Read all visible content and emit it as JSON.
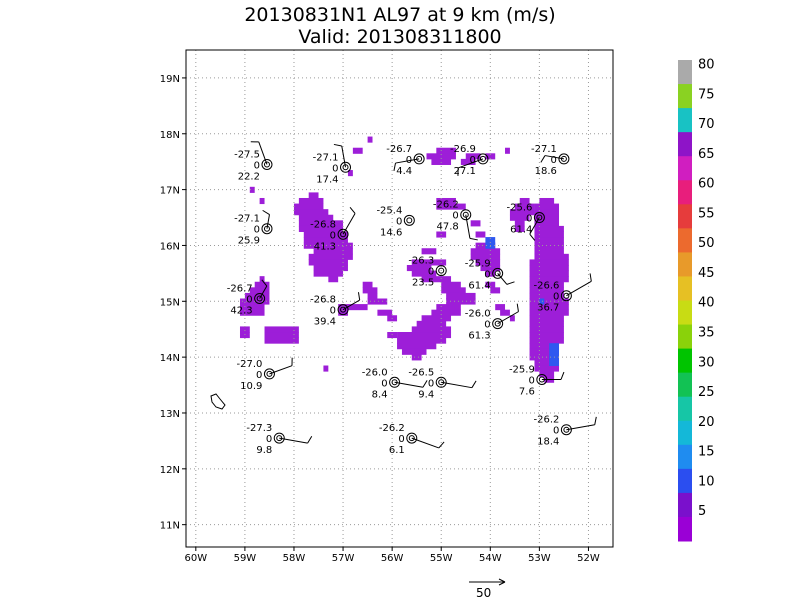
{
  "title": "20130831N1 AL97 at 9 km (m/s)",
  "subtitle": "Valid: 201308311800",
  "chart_data": {
    "type": "heatmap",
    "xlim": [
      -60.2,
      -51.5
    ],
    "ylim": [
      10.6,
      19.5
    ],
    "x_ticks": [
      {
        "v": -60,
        "label": "60W"
      },
      {
        "v": -59,
        "label": "59W"
      },
      {
        "v": -58,
        "label": "58W"
      },
      {
        "v": -57,
        "label": "57W"
      },
      {
        "v": -56,
        "label": "56W"
      },
      {
        "v": -55,
        "label": "55W"
      },
      {
        "v": -54,
        "label": "54W"
      },
      {
        "v": -53,
        "label": "53W"
      },
      {
        "v": -52,
        "label": "52W"
      }
    ],
    "y_ticks": [
      {
        "v": 11,
        "label": "11N"
      },
      {
        "v": 12,
        "label": "12N"
      },
      {
        "v": 13,
        "label": "13N"
      },
      {
        "v": 14,
        "label": "14N"
      },
      {
        "v": 15,
        "label": "15N"
      },
      {
        "v": 16,
        "label": "16N"
      },
      {
        "v": 17,
        "label": "17N"
      },
      {
        "v": 18,
        "label": "18N"
      },
      {
        "v": 19,
        "label": "19N"
      }
    ],
    "grid": true,
    "colorbar": {
      "labels": [
        "5",
        "10",
        "15",
        "20",
        "25",
        "30",
        "35",
        "40",
        "45",
        "50",
        "55",
        "60",
        "65",
        "70",
        "75",
        "80"
      ],
      "colors": [
        "#9a00d6",
        "#7a10cc",
        "#2b4ef0",
        "#1f8cf0",
        "#14b8d8",
        "#16c6a6",
        "#12c254",
        "#00c400",
        "#8ad20a",
        "#c8dc14",
        "#e6c024",
        "#e89a2a",
        "#ec6a2e",
        "#e63c3c",
        "#e81e7c",
        "#d01ec0",
        "#8e14c8",
        "#18c2c4",
        "#8ad222",
        "#aaaaaa"
      ]
    },
    "vector_scale": {
      "label": "50"
    },
    "regions": [
      {
        "lat": 17.3,
        "lon_from": -56.9,
        "lon_to": -56.8
      },
      {
        "lat": 17.7,
        "lon_from": -56.8,
        "lon_to": -56.6
      },
      {
        "lat": 16.9,
        "lon_from": -57.7,
        "lon_to": -57.5
      },
      {
        "lat": 16.8,
        "lon_from": -57.9,
        "lon_to": -57.4
      },
      {
        "lat": 16.7,
        "lon_from": -58.0,
        "lon_to": -57.4
      },
      {
        "lat": 16.6,
        "lon_from": -58.0,
        "lon_to": -57.3
      },
      {
        "lat": 16.5,
        "lon_from": -57.9,
        "lon_to": -57.2
      },
      {
        "lat": 16.4,
        "lon_from": -57.9,
        "lon_to": -57.0
      },
      {
        "lat": 16.3,
        "lon_from": -57.9,
        "lon_to": -57.0
      },
      {
        "lat": 16.2,
        "lon_from": -57.8,
        "lon_to": -56.9
      },
      {
        "lat": 16.1,
        "lon_from": -57.8,
        "lon_to": -56.9
      },
      {
        "lat": 16.0,
        "lon_from": -57.8,
        "lon_to": -56.8
      },
      {
        "lat": 15.9,
        "lon_from": -57.6,
        "lon_to": -56.8
      },
      {
        "lat": 15.8,
        "lon_from": -57.7,
        "lon_to": -56.8
      },
      {
        "lat": 15.7,
        "lon_from": -57.7,
        "lon_to": -56.9
      },
      {
        "lat": 15.6,
        "lon_from": -57.6,
        "lon_to": -56.9
      },
      {
        "lat": 15.5,
        "lon_from": -57.6,
        "lon_to": -57.0
      },
      {
        "lat": 15.4,
        "lon_from": -57.3,
        "lon_to": -57.1
      },
      {
        "lat": 15.3,
        "lon_from": -56.6,
        "lon_to": -56.4
      },
      {
        "lat": 15.2,
        "lon_from": -56.6,
        "lon_to": -56.3
      },
      {
        "lat": 15.1,
        "lon_from": -56.5,
        "lon_to": -56.3
      },
      {
        "lat": 15.0,
        "lon_from": -56.5,
        "lon_to": -56.1
      },
      {
        "lat": 14.9,
        "lon_from": -57.1,
        "lon_to": -56.5
      },
      {
        "lat": 14.8,
        "lon_from": -57.1,
        "lon_to": -56.9
      },
      {
        "lat": 14.8,
        "lon_from": -56.3,
        "lon_to": -56.0
      },
      {
        "lat": 14.7,
        "lon_from": -56.1,
        "lon_to": -55.9
      },
      {
        "lat": 15.4,
        "lon_from": -58.7,
        "lon_to": -58.6
      },
      {
        "lat": 15.3,
        "lon_from": -58.8,
        "lon_to": -58.5
      },
      {
        "lat": 15.2,
        "lon_from": -58.9,
        "lon_to": -58.5
      },
      {
        "lat": 15.1,
        "lon_from": -59.0,
        "lon_to": -58.5
      },
      {
        "lat": 15.0,
        "lon_from": -59.1,
        "lon_to": -58.5
      },
      {
        "lat": 14.9,
        "lon_from": -59.1,
        "lon_to": -58.6
      },
      {
        "lat": 14.8,
        "lon_from": -59.1,
        "lon_to": -58.6
      },
      {
        "lat": 14.5,
        "lon_from": -59.1,
        "lon_to": -58.9
      },
      {
        "lat": 14.5,
        "lon_from": -58.6,
        "lon_to": -57.9
      },
      {
        "lat": 14.4,
        "lon_from": -58.6,
        "lon_to": -57.9
      },
      {
        "lat": 14.3,
        "lon_from": -58.6,
        "lon_to": -57.9
      },
      {
        "lat": 14.4,
        "lon_from": -59.1,
        "lon_to": -58.9
      },
      {
        "lat": 13.8,
        "lon_from": -57.4,
        "lon_to": -57.3
      },
      {
        "lat": 16.8,
        "lon_from": -58.7,
        "lon_to": -58.6
      },
      {
        "lat": 17.0,
        "lon_from": -58.9,
        "lon_to": -58.8
      },
      {
        "lat": 16.2,
        "lon_from": -55.1,
        "lon_to": -54.9
      },
      {
        "lat": 15.9,
        "lon_from": -55.4,
        "lon_to": -55.1
      },
      {
        "lat": 15.7,
        "lon_from": -55.6,
        "lon_to": -54.9
      },
      {
        "lat": 15.6,
        "lon_from": -55.7,
        "lon_to": -55.2
      },
      {
        "lat": 15.5,
        "lon_from": -55.6,
        "lon_to": -55.1
      },
      {
        "lat": 15.4,
        "lon_from": -55.4,
        "lon_to": -54.8
      },
      {
        "lat": 15.3,
        "lon_from": -55.0,
        "lon_to": -54.6
      },
      {
        "lat": 15.2,
        "lon_from": -55.0,
        "lon_to": -54.5
      },
      {
        "lat": 15.1,
        "lon_from": -54.9,
        "lon_to": -54.3
      },
      {
        "lat": 15.0,
        "lon_from": -54.9,
        "lon_to": -54.3
      },
      {
        "lat": 14.9,
        "lon_from": -55.1,
        "lon_to": -54.6
      },
      {
        "lat": 14.8,
        "lon_from": -55.2,
        "lon_to": -54.6
      },
      {
        "lat": 14.7,
        "lon_from": -55.4,
        "lon_to": -54.8
      },
      {
        "lat": 14.6,
        "lon_from": -55.5,
        "lon_to": -54.9
      },
      {
        "lat": 14.5,
        "lon_from": -55.6,
        "lon_to": -54.8
      },
      {
        "lat": 14.4,
        "lon_from": -55.9,
        "lon_to": -54.8
      },
      {
        "lat": 14.3,
        "lon_from": -55.9,
        "lon_to": -54.9
      },
      {
        "lat": 14.2,
        "lon_from": -55.9,
        "lon_to": -55.1
      },
      {
        "lat": 14.1,
        "lon_from": -55.8,
        "lon_to": -55.3
      },
      {
        "lat": 14.0,
        "lon_from": -55.6,
        "lon_to": -55.4
      },
      {
        "lat": 14.4,
        "lon_from": -56.1,
        "lon_to": -55.9
      },
      {
        "lat": 16.8,
        "lon_from": -55.1,
        "lon_to": -54.7
      },
      {
        "lat": 16.7,
        "lon_from": -55.1,
        "lon_to": -54.5
      },
      {
        "lat": 16.4,
        "lon_from": -54.4,
        "lon_to": -54.2
      },
      {
        "lat": 16.2,
        "lon_from": -54.3,
        "lon_to": -54.1
      },
      {
        "lat": 16.0,
        "lon_from": -54.3,
        "lon_to": -53.9
      },
      {
        "lat": 15.9,
        "lon_from": -54.4,
        "lon_to": -53.8
      },
      {
        "lat": 15.8,
        "lon_from": -54.4,
        "lon_to": -53.8
      },
      {
        "lat": 15.7,
        "lon_from": -54.3,
        "lon_to": -53.8
      },
      {
        "lat": 15.6,
        "lon_from": -54.2,
        "lon_to": -53.8
      },
      {
        "lat": 15.5,
        "lon_from": -54.1,
        "lon_to": -53.9
      },
      {
        "lat": 15.3,
        "lon_from": -54.1,
        "lon_to": -53.9
      },
      {
        "lat": 15.2,
        "lon_from": -54.0,
        "lon_to": -53.8
      },
      {
        "lat": 14.9,
        "lon_from": -53.9,
        "lon_to": -53.7
      },
      {
        "lat": 14.8,
        "lon_from": -53.8,
        "lon_to": -53.6
      },
      {
        "lat": 14.7,
        "lon_from": -53.6,
        "lon_to": -53.5
      },
      {
        "lat": 17.7,
        "lon_from": -55.1,
        "lon_to": -54.7
      },
      {
        "lat": 17.6,
        "lon_from": -55.3,
        "lon_to": -54.7
      },
      {
        "lat": 17.5,
        "lon_from": -55.2,
        "lon_to": -54.8
      },
      {
        "lat": 17.6,
        "lon_from": -54.5,
        "lon_to": -54.2
      },
      {
        "lat": 17.5,
        "lon_from": -54.6,
        "lon_to": -54.3
      },
      {
        "lat": 17.6,
        "lon_from": -54.1,
        "lon_to": -53.9
      },
      {
        "lat": 17.7,
        "lon_from": -53.7,
        "lon_to": -53.6
      },
      {
        "lat": 17.9,
        "lon_from": -56.5,
        "lon_to": -56.4
      },
      {
        "lat": 16.8,
        "lon_from": -53.4,
        "lon_to": -53.2
      },
      {
        "lat": 16.7,
        "lon_from": -53.5,
        "lon_to": -53.1
      },
      {
        "lat": 16.6,
        "lon_from": -53.6,
        "lon_to": -53.1
      },
      {
        "lat": 16.5,
        "lon_from": -53.6,
        "lon_to": -53.2
      },
      {
        "lat": 16.4,
        "lon_from": -53.5,
        "lon_to": -53.3
      },
      {
        "lat": 16.3,
        "lon_from": -53.5,
        "lon_to": -53.3
      },
      {
        "lat": 16.8,
        "lon_from": -53.0,
        "lon_to": -52.7
      },
      {
        "lat": 16.7,
        "lon_from": -53.1,
        "lon_to": -52.6
      },
      {
        "lat": 16.6,
        "lon_from": -53.1,
        "lon_to": -52.6
      },
      {
        "lat": 16.5,
        "lon_from": -53.1,
        "lon_to": -52.6
      },
      {
        "lat": 16.4,
        "lon_from": -53.1,
        "lon_to": -52.6
      },
      {
        "lat": 16.3,
        "lon_from": -53.1,
        "lon_to": -52.5
      },
      {
        "lat": 16.2,
        "lon_from": -53.1,
        "lon_to": -52.5
      },
      {
        "lat": 16.1,
        "lon_from": -53.1,
        "lon_to": -52.5
      },
      {
        "lat": 16.0,
        "lon_from": -53.1,
        "lon_to": -52.5
      },
      {
        "lat": 15.9,
        "lon_from": -53.1,
        "lon_to": -52.5
      },
      {
        "lat": 15.8,
        "lon_from": -53.1,
        "lon_to": -52.4
      },
      {
        "lat": 15.7,
        "lon_from": -53.2,
        "lon_to": -52.4
      },
      {
        "lat": 15.6,
        "lon_from": -53.2,
        "lon_to": -52.4
      },
      {
        "lat": 15.5,
        "lon_from": -53.2,
        "lon_to": -52.4
      },
      {
        "lat": 15.4,
        "lon_from": -53.2,
        "lon_to": -52.4
      },
      {
        "lat": 15.3,
        "lon_from": -53.2,
        "lon_to": -52.5
      },
      {
        "lat": 15.2,
        "lon_from": -53.2,
        "lon_to": -52.5
      },
      {
        "lat": 15.1,
        "lon_from": -53.2,
        "lon_to": -52.5
      },
      {
        "lat": 15.0,
        "lon_from": -53.2,
        "lon_to": -52.4
      },
      {
        "lat": 14.9,
        "lon_from": -53.2,
        "lon_to": -52.4
      },
      {
        "lat": 14.8,
        "lon_from": -53.2,
        "lon_to": -52.4
      },
      {
        "lat": 14.7,
        "lon_from": -53.2,
        "lon_to": -52.5
      },
      {
        "lat": 14.6,
        "lon_from": -53.2,
        "lon_to": -52.5
      },
      {
        "lat": 14.5,
        "lon_from": -53.2,
        "lon_to": -52.5
      },
      {
        "lat": 14.4,
        "lon_from": -53.2,
        "lon_to": -52.5
      },
      {
        "lat": 14.3,
        "lon_from": -53.2,
        "lon_to": -52.5
      },
      {
        "lat": 14.2,
        "lon_from": -53.2,
        "lon_to": -52.6
      },
      {
        "lat": 14.1,
        "lon_from": -53.2,
        "lon_to": -52.6
      },
      {
        "lat": 14.0,
        "lon_from": -53.2,
        "lon_to": -52.6
      },
      {
        "lat": 13.9,
        "lon_from": -53.1,
        "lon_to": -52.6
      },
      {
        "lat": 13.8,
        "lon_from": -53.1,
        "lon_to": -52.6
      },
      {
        "lat": 13.7,
        "lon_from": -53.0,
        "lon_to": -52.7
      },
      {
        "lat": 13.6,
        "lon_from": -52.9,
        "lon_to": -52.7
      }
    ],
    "blue_regions": [
      {
        "lat": 16.1,
        "lon_from": -54.1,
        "lon_to": -53.9
      },
      {
        "lat": 16.0,
        "lon_from": -54.1,
        "lon_to": -53.9
      },
      {
        "lat": 14.2,
        "lon_from": -52.8,
        "lon_to": -52.6
      },
      {
        "lat": 14.1,
        "lon_from": -52.8,
        "lon_to": -52.6
      },
      {
        "lat": 14.0,
        "lon_from": -52.8,
        "lon_to": -52.6
      },
      {
        "lat": 13.9,
        "lon_from": -52.8,
        "lon_to": -52.6
      },
      {
        "lat": 15.0,
        "lon_from": -53.0,
        "lon_to": -52.9
      }
    ],
    "sondes": [
      {
        "lon": -58.55,
        "lat": 17.45,
        "labels": [
          "-27.5",
          "0",
          "22.2"
        ],
        "barb_dir": 200,
        "barb_len": 0.5
      },
      {
        "lon": -56.95,
        "lat": 17.4,
        "labels": [
          "-27.1",
          "0",
          "17.4"
        ],
        "barb_dir": 190,
        "barb_len": 0.45
      },
      {
        "lon": -55.45,
        "lat": 17.55,
        "labels": [
          "-26.7",
          "0",
          "4.4"
        ],
        "barb_dir": 280,
        "barb_len": 0.5
      },
      {
        "lon": -54.15,
        "lat": 17.55,
        "labels": [
          "-26.9",
          "0",
          "27.1"
        ],
        "barb_dir": 290,
        "barb_len": 0.55
      },
      {
        "lon": -52.5,
        "lat": 17.55,
        "labels": [
          "-27.1",
          "0",
          "18.6"
        ],
        "barb_dir": 260,
        "barb_len": 0.4
      },
      {
        "lon": -58.55,
        "lat": 16.3,
        "labels": [
          "-27.1",
          "0",
          "25.9"
        ],
        "barb_dir": 170,
        "barb_len": 0.3
      },
      {
        "lon": -55.65,
        "lat": 16.45,
        "labels": [
          "-25.4",
          "0",
          "14.6"
        ],
        "barb_dir": 0,
        "barb_len": 0
      },
      {
        "lon": -57.0,
        "lat": 16.2,
        "labels": [
          "-26.8",
          "0",
          "41.3"
        ],
        "barb_dir": 150,
        "barb_len": 0.5
      },
      {
        "lon": -54.5,
        "lat": 16.55,
        "labels": [
          "-26.2",
          "0",
          "47.8"
        ],
        "barb_dir": 10,
        "barb_len": 0.5
      },
      {
        "lon": -53.0,
        "lat": 16.5,
        "labels": [
          "-25.6",
          "0",
          "61.4"
        ],
        "barb_dir": 330,
        "barb_len": 0.4
      },
      {
        "lon": -55.0,
        "lat": 15.55,
        "labels": [
          "-26.3",
          "0",
          "23.5"
        ],
        "barb_dir": 0,
        "barb_len": 0
      },
      {
        "lon": -53.85,
        "lat": 15.5,
        "labels": [
          "-25.9",
          "0",
          "61.4"
        ],
        "barb_dir": 40,
        "barb_len": 0.3
      },
      {
        "lon": -58.7,
        "lat": 15.05,
        "labels": [
          "-26.7",
          "0",
          "42.3"
        ],
        "barb_dir": 150,
        "barb_len": 0.3
      },
      {
        "lon": -57.0,
        "lat": 14.85,
        "labels": [
          "-26.8",
          "0",
          "39.4"
        ],
        "barb_dir": 120,
        "barb_len": 0.4
      },
      {
        "lon": -52.45,
        "lat": 15.1,
        "labels": [
          "-26.6",
          "0",
          "36.7"
        ],
        "barb_dir": 120,
        "barb_len": 0.6
      },
      {
        "lon": -53.85,
        "lat": 14.6,
        "labels": [
          "-26.0",
          "0",
          "61.3"
        ],
        "barb_dir": 120,
        "barb_len": 0.5
      },
      {
        "lon": -58.5,
        "lat": 13.7,
        "labels": [
          "-27.0",
          "0",
          "10.9"
        ],
        "barb_dir": 110,
        "barb_len": 0.5
      },
      {
        "lon": -55.95,
        "lat": 13.55,
        "labels": [
          "-26.0",
          "0",
          "8.4"
        ],
        "barb_dir": 80,
        "barb_len": 0.6
      },
      {
        "lon": -55.0,
        "lat": 13.55,
        "labels": [
          "-26.5",
          "0",
          "9.4"
        ],
        "barb_dir": 80,
        "barb_len": 0.65
      },
      {
        "lon": -52.95,
        "lat": 13.6,
        "labels": [
          "-25.9",
          "0",
          "7.6"
        ],
        "barb_dir": 90,
        "barb_len": 0.4
      },
      {
        "lon": -58.3,
        "lat": 12.55,
        "labels": [
          "-27.3",
          "0",
          "9.8"
        ],
        "barb_dir": 80,
        "barb_len": 0.6
      },
      {
        "lon": -55.6,
        "lat": 12.55,
        "labels": [
          "-26.2",
          "0",
          "6.1"
        ],
        "barb_dir": 70,
        "barb_len": 0.6
      },
      {
        "lon": -52.45,
        "lat": 12.7,
        "labels": [
          "-26.2",
          "0",
          "18.4"
        ],
        "barb_dir": 100,
        "barb_len": 0.6
      }
    ]
  }
}
